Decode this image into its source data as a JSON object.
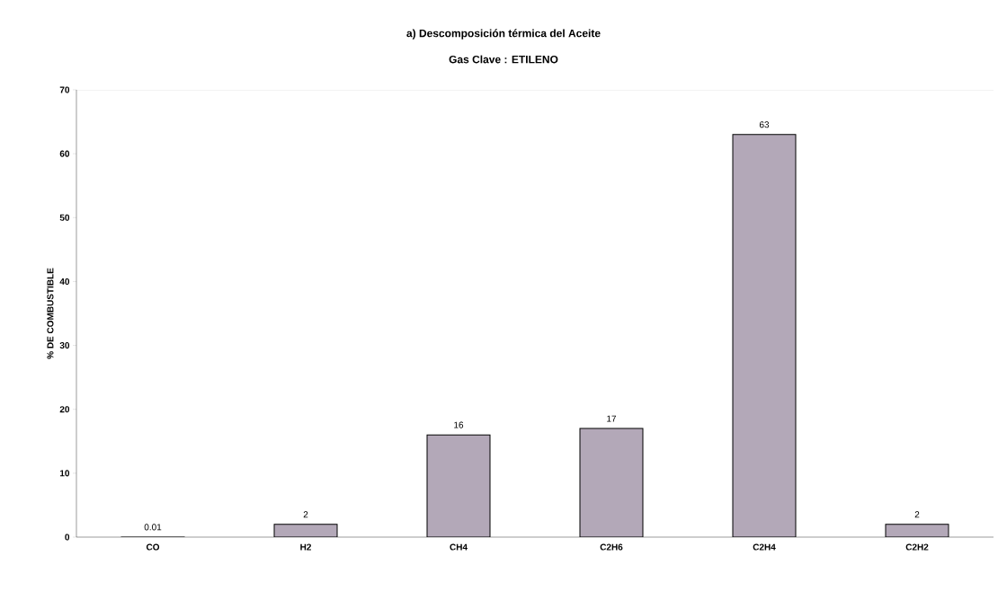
{
  "chart_data": {
    "type": "bar",
    "title": "a) Descomposición térmica del Aceite",
    "subtitle": "Gas Clave : ETILENO",
    "ylabel": "% DE COMBUSTIBLE",
    "categories": [
      "CO",
      "H2",
      "CH4",
      "C2H6",
      "C2H4",
      "C2H2"
    ],
    "values": [
      0.01,
      2,
      16,
      17,
      63,
      2
    ],
    "color": "#b3a8b8",
    "data_labels": true,
    "ylim": [
      0,
      70
    ],
    "yticks": [
      0,
      10,
      20,
      30,
      40,
      50,
      60,
      70
    ],
    "grid": false
  }
}
